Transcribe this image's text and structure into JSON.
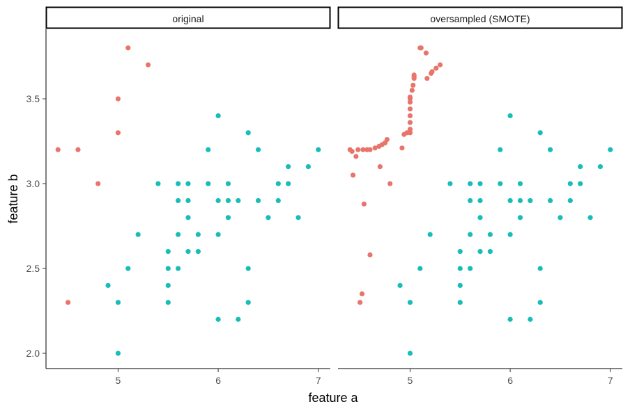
{
  "colors": {
    "minority": "#e8756b",
    "majority": "#18bdb9"
  },
  "chart_data": {
    "type": "scatter",
    "xlabel": "feature a",
    "ylabel": "feature b",
    "xlim": [
      4.28,
      7.12
    ],
    "ylim": [
      1.91,
      3.91
    ],
    "xticks": [
      5,
      6,
      7
    ],
    "yticks": [
      2.0,
      2.5,
      3.0,
      3.5
    ],
    "ytick_labels": [
      "2.0",
      "2.5",
      "3.0",
      "3.5"
    ],
    "grid": false,
    "legend": "none",
    "panels": [
      {
        "title": "original",
        "series": [
          {
            "color_key": "minority",
            "points": [
              [
                4.4,
                3.2
              ],
              [
                4.6,
                3.2
              ],
              [
                4.8,
                3.0
              ],
              [
                4.5,
                2.3
              ],
              [
                5.0,
                3.5
              ],
              [
                5.0,
                3.3
              ],
              [
                5.1,
                3.8
              ],
              [
                5.3,
                3.7
              ]
            ]
          },
          {
            "color_key": "majority",
            "points": [
              [
                4.9,
                2.4
              ],
              [
                5.0,
                2.3
              ],
              [
                5.0,
                2.0
              ],
              [
                5.1,
                2.5
              ],
              [
                5.2,
                2.7
              ],
              [
                5.4,
                3.0
              ],
              [
                5.5,
                2.6
              ],
              [
                5.5,
                2.5
              ],
              [
                5.5,
                2.4
              ],
              [
                5.5,
                2.3
              ],
              [
                5.6,
                3.0
              ],
              [
                5.6,
                2.9
              ],
              [
                5.6,
                2.7
              ],
              [
                5.6,
                2.5
              ],
              [
                5.7,
                3.0
              ],
              [
                5.7,
                2.9
              ],
              [
                5.7,
                2.8
              ],
              [
                5.7,
                2.6
              ],
              [
                5.8,
                2.7
              ],
              [
                5.8,
                2.6
              ],
              [
                5.9,
                3.2
              ],
              [
                5.9,
                3.0
              ],
              [
                6.0,
                3.4
              ],
              [
                6.0,
                2.9
              ],
              [
                6.0,
                2.7
              ],
              [
                6.0,
                2.2
              ],
              [
                6.1,
                3.0
              ],
              [
                6.1,
                2.9
              ],
              [
                6.1,
                2.8
              ],
              [
                6.2,
                2.9
              ],
              [
                6.2,
                2.2
              ],
              [
                6.3,
                3.3
              ],
              [
                6.3,
                2.5
              ],
              [
                6.3,
                2.3
              ],
              [
                6.4,
                3.2
              ],
              [
                6.4,
                2.9
              ],
              [
                6.5,
                2.8
              ],
              [
                6.6,
                3.0
              ],
              [
                6.6,
                2.9
              ],
              [
                6.7,
                3.1
              ],
              [
                6.7,
                3.0
              ],
              [
                6.8,
                2.8
              ],
              [
                6.9,
                3.1
              ],
              [
                7.0,
                3.2
              ]
            ]
          }
        ]
      },
      {
        "title": "oversampled (SMOTE)",
        "series": [
          {
            "color_key": "minority",
            "points": [
              [
                4.4,
                3.2
              ],
              [
                4.6,
                3.2
              ],
              [
                4.8,
                3.0
              ],
              [
                4.5,
                2.3
              ],
              [
                5.0,
                3.5
              ],
              [
                5.0,
                3.3
              ],
              [
                5.1,
                3.8
              ],
              [
                5.3,
                3.7
              ],
              [
                4.42,
                3.19
              ],
              [
                4.46,
                3.16
              ],
              [
                4.48,
                3.2
              ],
              [
                4.53,
                3.2
              ],
              [
                4.57,
                3.2
              ],
              [
                4.65,
                3.21
              ],
              [
                4.69,
                3.22
              ],
              [
                4.72,
                3.23
              ],
              [
                4.75,
                3.24
              ],
              [
                4.77,
                3.26
              ],
              [
                4.92,
                3.21
              ],
              [
                4.94,
                3.29
              ],
              [
                4.97,
                3.3
              ],
              [
                5.0,
                3.32
              ],
              [
                5.0,
                3.36
              ],
              [
                5.0,
                3.4
              ],
              [
                5.0,
                3.44
              ],
              [
                5.0,
                3.48
              ],
              [
                5.0,
                3.51
              ],
              [
                5.02,
                3.55
              ],
              [
                5.03,
                3.58
              ],
              [
                5.04,
                3.62
              ],
              [
                5.04,
                3.63
              ],
              [
                5.04,
                3.64
              ],
              [
                5.11,
                3.8
              ],
              [
                5.16,
                3.77
              ],
              [
                5.17,
                3.62
              ],
              [
                5.21,
                3.65
              ],
              [
                5.22,
                3.66
              ],
              [
                5.26,
                3.68
              ],
              [
                4.43,
                3.05
              ],
              [
                4.7,
                3.1
              ],
              [
                4.54,
                2.88
              ],
              [
                4.6,
                2.58
              ],
              [
                4.52,
                2.35
              ]
            ]
          },
          {
            "color_key": "majority",
            "points": [
              [
                4.9,
                2.4
              ],
              [
                5.0,
                2.3
              ],
              [
                5.0,
                2.0
              ],
              [
                5.1,
                2.5
              ],
              [
                5.2,
                2.7
              ],
              [
                5.4,
                3.0
              ],
              [
                5.5,
                2.6
              ],
              [
                5.5,
                2.5
              ],
              [
                5.5,
                2.4
              ],
              [
                5.5,
                2.3
              ],
              [
                5.6,
                3.0
              ],
              [
                5.6,
                2.9
              ],
              [
                5.6,
                2.7
              ],
              [
                5.6,
                2.5
              ],
              [
                5.7,
                3.0
              ],
              [
                5.7,
                2.9
              ],
              [
                5.7,
                2.8
              ],
              [
                5.7,
                2.6
              ],
              [
                5.8,
                2.7
              ],
              [
                5.8,
                2.6
              ],
              [
                5.9,
                3.2
              ],
              [
                5.9,
                3.0
              ],
              [
                6.0,
                3.4
              ],
              [
                6.0,
                2.9
              ],
              [
                6.0,
                2.7
              ],
              [
                6.0,
                2.2
              ],
              [
                6.1,
                3.0
              ],
              [
                6.1,
                2.9
              ],
              [
                6.1,
                2.8
              ],
              [
                6.2,
                2.9
              ],
              [
                6.2,
                2.2
              ],
              [
                6.3,
                3.3
              ],
              [
                6.3,
                2.5
              ],
              [
                6.3,
                2.3
              ],
              [
                6.4,
                3.2
              ],
              [
                6.4,
                2.9
              ],
              [
                6.5,
                2.8
              ],
              [
                6.6,
                3.0
              ],
              [
                6.6,
                2.9
              ],
              [
                6.7,
                3.1
              ],
              [
                6.7,
                3.0
              ],
              [
                6.8,
                2.8
              ],
              [
                6.9,
                3.1
              ],
              [
                7.0,
                3.2
              ]
            ]
          }
        ]
      }
    ]
  }
}
